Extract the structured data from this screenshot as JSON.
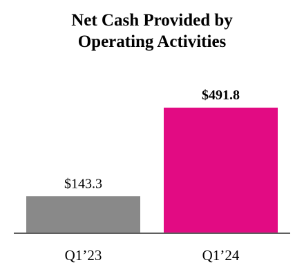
{
  "chart_data": {
    "type": "bar",
    "title_lines": [
      "Net Cash Provided by",
      "Operating Activities"
    ],
    "categories": [
      "Q1’23",
      "Q1’24"
    ],
    "values": [
      143.3,
      491.8
    ],
    "value_labels": [
      "$143.3",
      "$491.8"
    ],
    "value_label_bold": [
      false,
      true
    ],
    "bar_colors": [
      "#898989",
      "#E20B83"
    ],
    "axis_color": "#5f5f5f",
    "grid": false,
    "legend": "none"
  }
}
